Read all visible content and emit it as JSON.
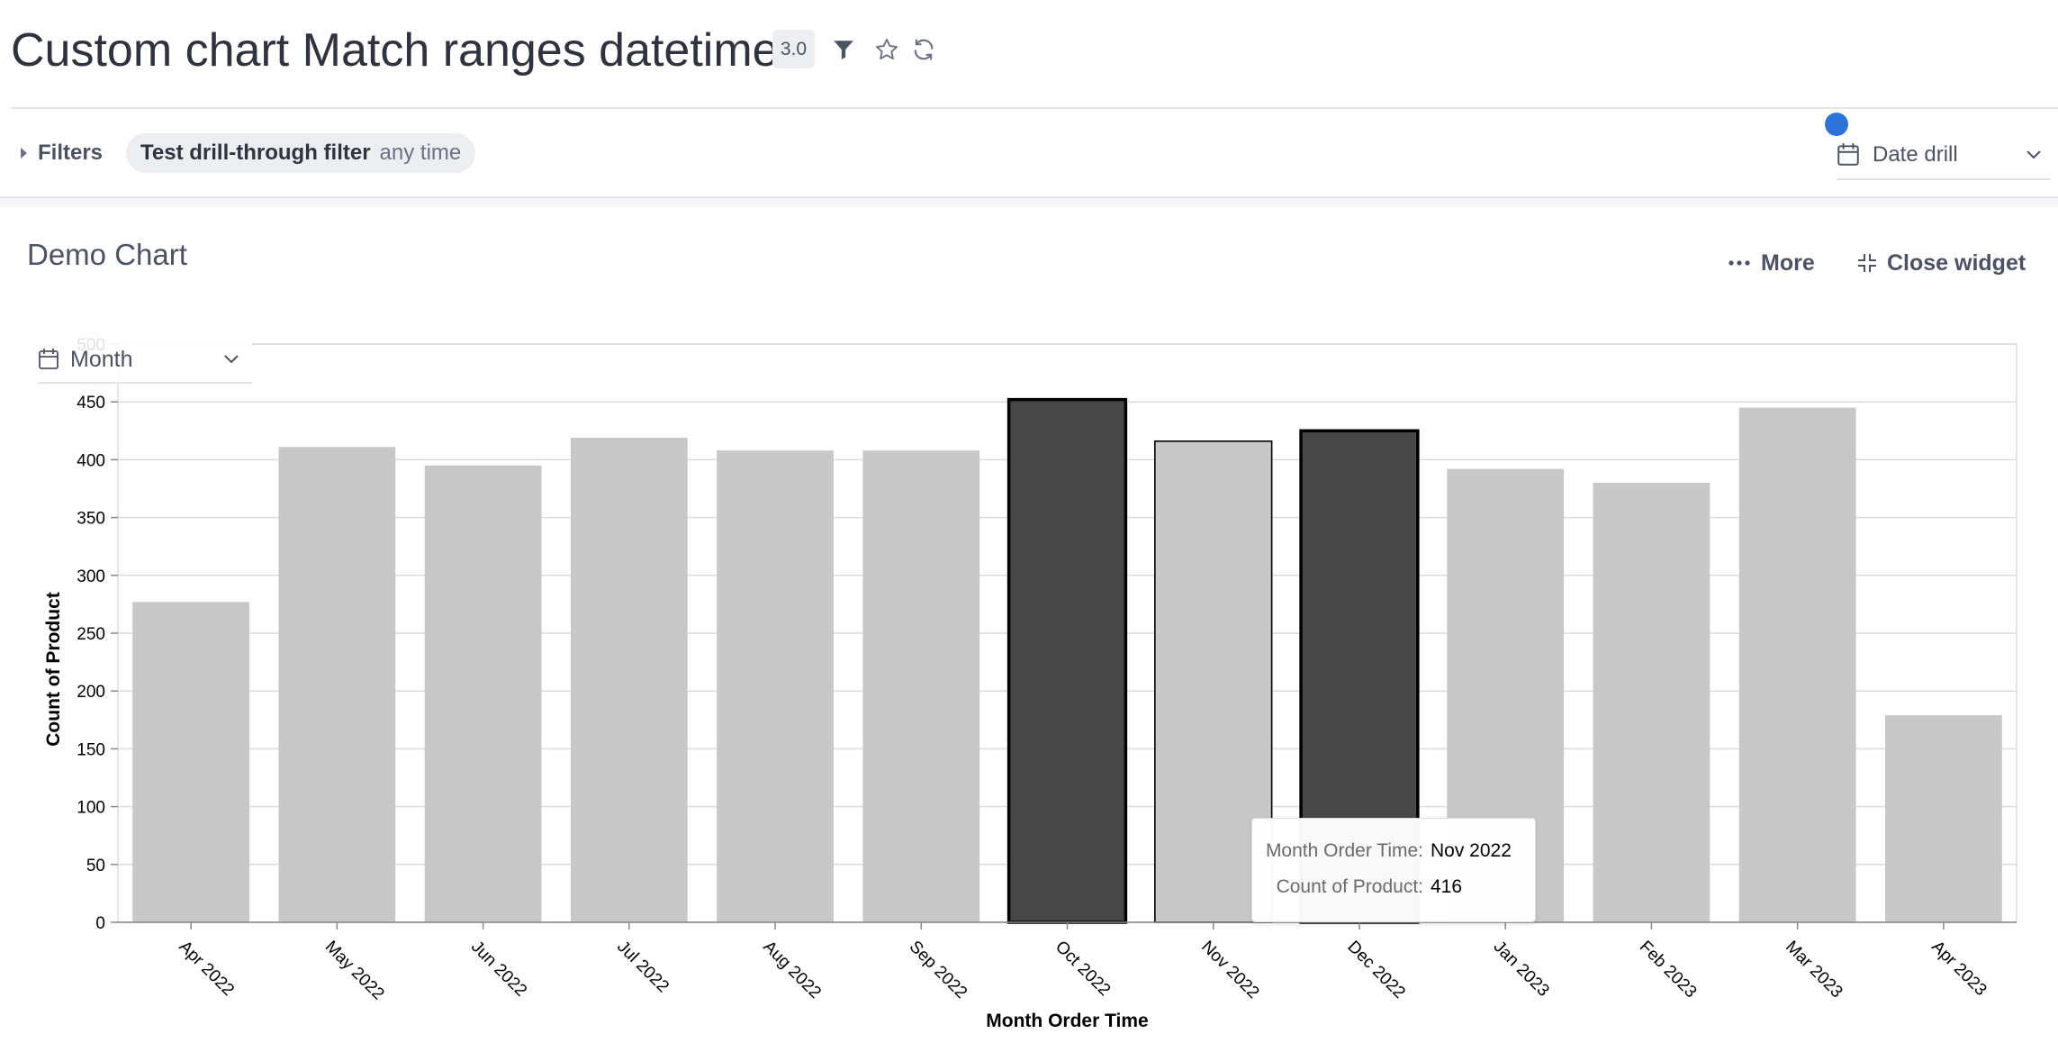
{
  "header": {
    "title": "Custom chart Match ranges datetime",
    "version": "3.0",
    "icons": [
      "filter-icon",
      "star-icon",
      "refresh-icon"
    ]
  },
  "filter_bar": {
    "filters_label": "Filters",
    "chip": {
      "name": "Test drill-through filter",
      "value": "any time"
    },
    "date_drill_label": "Date drill"
  },
  "widget": {
    "title": "Demo Chart",
    "more_label": "More",
    "close_label": "Close widget",
    "granularity": "Month"
  },
  "tooltip": {
    "rows": [
      {
        "key": "Month Order Time:",
        "value": "Nov 2022"
      },
      {
        "key": "Count of Product:",
        "value": "416"
      }
    ]
  },
  "colors": {
    "bar": "#c8c8c8",
    "bar_selected": "#474747",
    "accent": "#2e74d8",
    "text": "#30323e"
  },
  "chart_data": {
    "type": "bar",
    "xlabel": "Month Order Time",
    "ylabel": "Count of Product",
    "ylim": [
      0,
      500
    ],
    "yticks": [
      0,
      50,
      100,
      150,
      200,
      250,
      300,
      350,
      400,
      450,
      500
    ],
    "grid": true,
    "categories": [
      "Apr 2022",
      "May 2022",
      "Jun 2022",
      "Jul 2022",
      "Aug 2022",
      "Sep 2022",
      "Oct 2022",
      "Nov 2022",
      "Dec 2022",
      "Jan 2023",
      "Feb 2023",
      "Mar 2023",
      "Apr 2023"
    ],
    "values": [
      277,
      411,
      395,
      419,
      408,
      408,
      452,
      416,
      425,
      392,
      380,
      445,
      179
    ],
    "selected": [
      "Oct 2022",
      "Dec 2022"
    ],
    "hovered": "Nov 2022"
  }
}
